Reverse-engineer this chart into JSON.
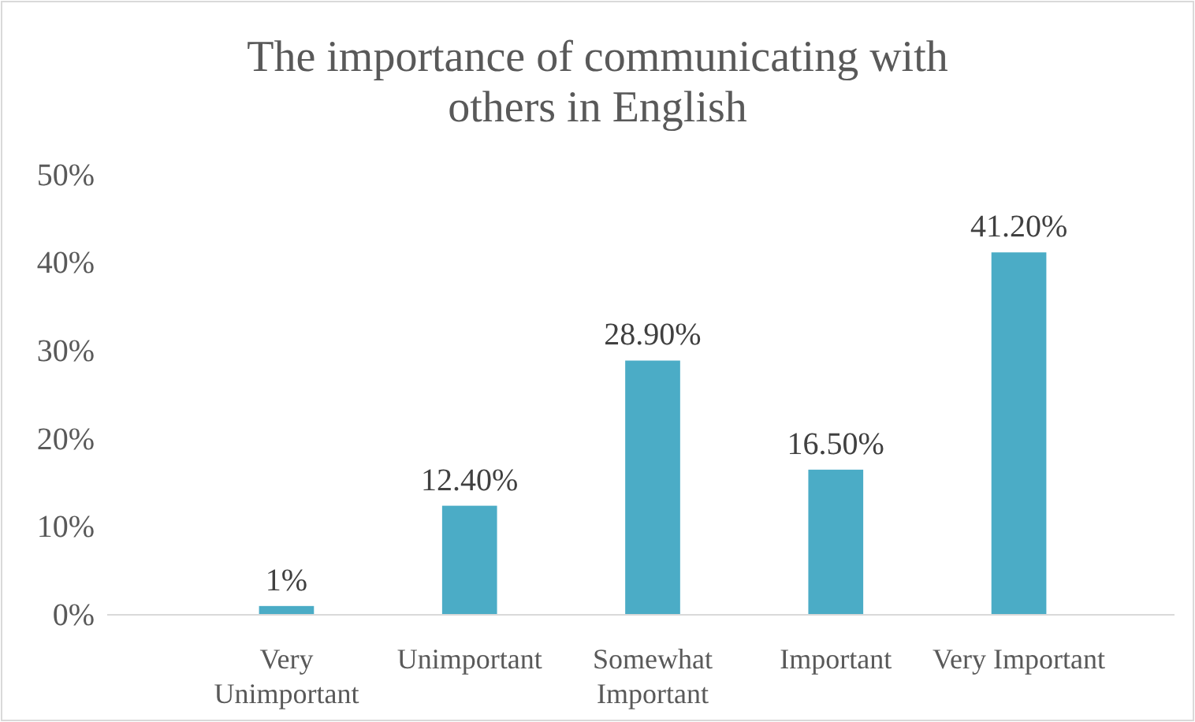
{
  "chart_data": {
    "type": "bar",
    "title": "The importance of communicating with others in English",
    "categories": [
      "Very Unimportant",
      "Unimportant",
      "Somewhat Important",
      "Important",
      "Very Important"
    ],
    "values": [
      1,
      12.4,
      28.9,
      16.5,
      41.2
    ],
    "value_labels": [
      "1%",
      "12.40%",
      "28.90%",
      "16.50%",
      "41.20%"
    ],
    "color": "#4bacc6",
    "ylim": [
      0,
      50
    ],
    "yticks": [
      {
        "value": 0,
        "label": "0%"
      },
      {
        "value": 10,
        "label": "10%"
      },
      {
        "value": 20,
        "label": "20%"
      },
      {
        "value": 30,
        "label": "30%"
      },
      {
        "value": 40,
        "label": "40%"
      },
      {
        "value": 50,
        "label": "50%"
      }
    ],
    "grid": false
  }
}
